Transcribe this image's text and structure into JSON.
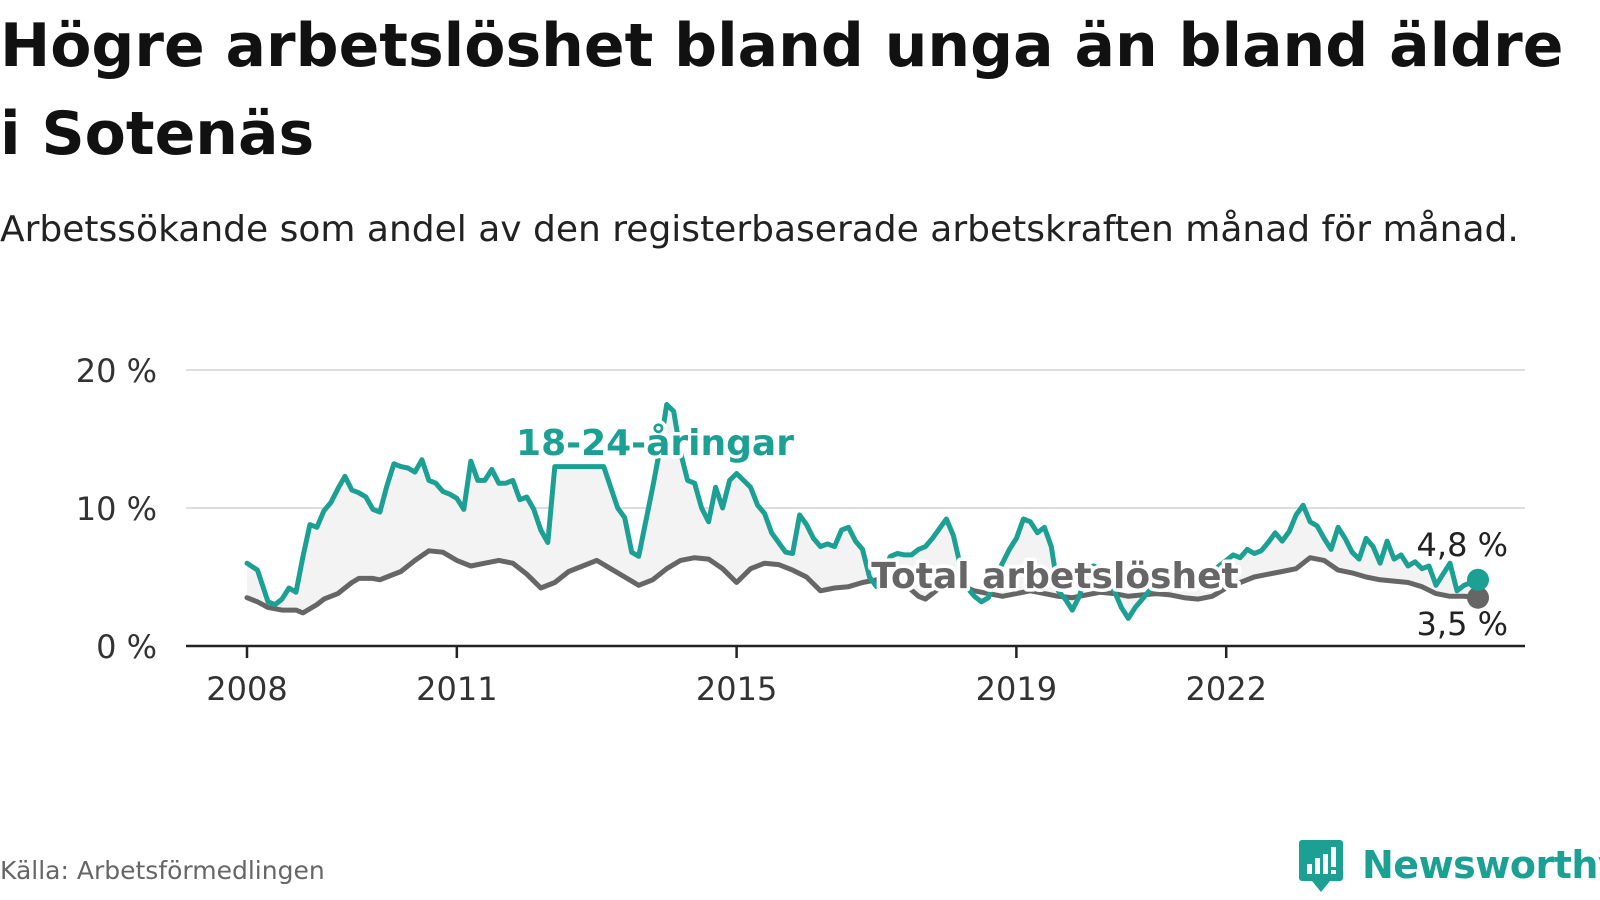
{
  "header": {
    "title": "Högre arbetslöshet bland unga än bland äldre i Sotenäs",
    "subtitle": "Arbetssökande som andel av den registerbaserade arbetskraften månad för månad."
  },
  "footer": {
    "source": "Källa: Arbetsförmedlingen",
    "brand": "Newsworthy"
  },
  "colors": {
    "young": "#1ba093",
    "total": "#666666",
    "band": "#f3f3f3",
    "grid": "#dddddd",
    "axis": "#222222"
  },
  "chart_data": {
    "type": "line",
    "x_start": "2008-01",
    "x_end": "2023-01",
    "ylim": [
      0,
      20
    ],
    "y_ticks": [
      {
        "value": 0,
        "label": "0 %"
      },
      {
        "value": 10,
        "label": "10 %"
      },
      {
        "value": 20,
        "label": "20 %"
      }
    ],
    "x_ticks": [
      {
        "value": 2008,
        "label": "2008"
      },
      {
        "value": 2011,
        "label": "2011"
      },
      {
        "value": 2015,
        "label": "2015"
      },
      {
        "value": 2019,
        "label": "2019"
      },
      {
        "value": 2022,
        "label": "2022"
      }
    ],
    "grid": true,
    "series": [
      {
        "name": "18-24-åringar",
        "color": "#1ba093",
        "end_label": "4,8 %",
        "points": [
          [
            2008.0,
            6.0
          ],
          [
            2008.15,
            5.5
          ],
          [
            2008.3,
            3.2
          ],
          [
            2008.4,
            3.0
          ],
          [
            2008.5,
            3.4
          ],
          [
            2008.6,
            4.2
          ],
          [
            2008.7,
            3.9
          ],
          [
            2008.8,
            6.5
          ],
          [
            2008.9,
            8.8
          ],
          [
            2009.0,
            8.6
          ],
          [
            2009.1,
            9.8
          ],
          [
            2009.2,
            10.4
          ],
          [
            2009.3,
            11.4
          ],
          [
            2009.4,
            12.3
          ],
          [
            2009.5,
            11.3
          ],
          [
            2009.6,
            11.1
          ],
          [
            2009.7,
            10.8
          ],
          [
            2009.8,
            9.9
          ],
          [
            2009.9,
            9.7
          ],
          [
            2010.0,
            11.6
          ],
          [
            2010.1,
            13.2
          ],
          [
            2010.2,
            13.0
          ],
          [
            2010.3,
            12.9
          ],
          [
            2010.4,
            12.6
          ],
          [
            2010.5,
            13.5
          ],
          [
            2010.6,
            12.0
          ],
          [
            2010.7,
            11.8
          ],
          [
            2010.8,
            11.2
          ],
          [
            2010.9,
            11.0
          ],
          [
            2011.0,
            10.7
          ],
          [
            2011.1,
            9.9
          ],
          [
            2011.2,
            13.4
          ],
          [
            2011.3,
            12.0
          ],
          [
            2011.4,
            12.0
          ],
          [
            2011.5,
            12.8
          ],
          [
            2011.6,
            11.8
          ],
          [
            2011.7,
            11.8
          ],
          [
            2011.8,
            12.0
          ],
          [
            2011.9,
            10.6
          ],
          [
            2012.0,
            10.8
          ],
          [
            2012.1,
            9.9
          ],
          [
            2012.2,
            8.4
          ],
          [
            2012.3,
            7.5
          ],
          [
            2012.4,
            13.0
          ],
          [
            2013.1,
            13.0
          ],
          [
            2013.2,
            11.5
          ],
          [
            2013.3,
            10.0
          ],
          [
            2013.4,
            9.3
          ],
          [
            2013.5,
            6.8
          ],
          [
            2013.6,
            6.5
          ],
          [
            2013.7,
            9.0
          ],
          [
            2013.8,
            11.5
          ],
          [
            2013.9,
            14.2
          ],
          [
            2014.0,
            17.5
          ],
          [
            2014.1,
            17.0
          ],
          [
            2014.2,
            14.0
          ],
          [
            2014.3,
            12.0
          ],
          [
            2014.4,
            11.8
          ],
          [
            2014.5,
            10.0
          ],
          [
            2014.6,
            9.0
          ],
          [
            2014.7,
            11.5
          ],
          [
            2014.8,
            10.0
          ],
          [
            2014.9,
            12.0
          ],
          [
            2015.0,
            12.5
          ],
          [
            2015.1,
            12.0
          ],
          [
            2015.2,
            11.5
          ],
          [
            2015.3,
            10.2
          ],
          [
            2015.4,
            9.6
          ],
          [
            2015.5,
            8.2
          ],
          [
            2015.6,
            7.5
          ],
          [
            2015.7,
            6.8
          ],
          [
            2015.8,
            6.7
          ],
          [
            2015.9,
            9.5
          ],
          [
            2016.0,
            8.8
          ],
          [
            2016.1,
            7.8
          ],
          [
            2016.2,
            7.2
          ],
          [
            2016.3,
            7.4
          ],
          [
            2016.4,
            7.2
          ],
          [
            2016.5,
            8.4
          ],
          [
            2016.6,
            8.6
          ],
          [
            2016.7,
            7.6
          ],
          [
            2016.8,
            7.0
          ],
          [
            2016.9,
            5.0
          ],
          [
            2017.0,
            4.3
          ],
          [
            2017.1,
            5.5
          ],
          [
            2017.2,
            6.5
          ],
          [
            2017.3,
            6.7
          ],
          [
            2017.4,
            6.6
          ],
          [
            2017.5,
            6.6
          ],
          [
            2017.6,
            7.0
          ],
          [
            2017.7,
            7.2
          ],
          [
            2017.8,
            7.8
          ],
          [
            2017.9,
            8.5
          ],
          [
            2018.0,
            9.2
          ],
          [
            2018.1,
            8.0
          ],
          [
            2018.2,
            5.8
          ],
          [
            2018.3,
            4.2
          ],
          [
            2018.4,
            3.6
          ],
          [
            2018.5,
            3.2
          ],
          [
            2018.6,
            3.5
          ],
          [
            2018.7,
            5.0
          ],
          [
            2018.8,
            6.0
          ],
          [
            2018.9,
            7.0
          ],
          [
            2019.0,
            7.8
          ],
          [
            2019.1,
            9.2
          ],
          [
            2019.2,
            9.0
          ],
          [
            2019.3,
            8.2
          ],
          [
            2019.4,
            8.6
          ],
          [
            2019.5,
            7.2
          ],
          [
            2019.6,
            4.0
          ],
          [
            2019.7,
            3.4
          ],
          [
            2019.8,
            2.6
          ],
          [
            2019.9,
            3.6
          ],
          [
            2020.0,
            5.2
          ],
          [
            2020.1,
            5.8
          ],
          [
            2020.2,
            5.6
          ],
          [
            2020.3,
            4.8
          ],
          [
            2020.4,
            4.0
          ],
          [
            2020.5,
            2.8
          ],
          [
            2020.6,
            2.0
          ],
          [
            2020.7,
            2.8
          ],
          [
            2020.8,
            3.4
          ],
          [
            2020.9,
            4.0
          ],
          [
            2021.0,
            4.2
          ],
          [
            2021.1,
            4.6
          ],
          [
            2021.2,
            4.8
          ],
          [
            2021.3,
            5.0
          ],
          [
            2021.4,
            4.8
          ],
          [
            2021.5,
            4.4
          ],
          [
            2021.6,
            4.8
          ],
          [
            2021.7,
            5.0
          ],
          [
            2021.8,
            5.4
          ],
          [
            2021.9,
            5.8
          ],
          [
            2022.0,
            6.2
          ],
          [
            2022.1,
            6.6
          ],
          [
            2022.2,
            6.4
          ],
          [
            2022.3,
            7.0
          ],
          [
            2022.4,
            6.7
          ],
          [
            2022.5,
            6.9
          ],
          [
            2022.6,
            7.5
          ],
          [
            2022.7,
            8.2
          ],
          [
            2022.8,
            7.6
          ],
          [
            2022.9,
            8.3
          ],
          [
            2023.0,
            9.5
          ],
          [
            2023.1,
            10.2
          ],
          [
            2023.2,
            9.0
          ],
          [
            2023.3,
            8.7
          ],
          [
            2023.4,
            7.8
          ],
          [
            2023.5,
            7.0
          ],
          [
            2023.6,
            8.6
          ],
          [
            2023.7,
            7.8
          ],
          [
            2023.8,
            6.8
          ],
          [
            2023.9,
            6.3
          ],
          [
            2024.0,
            7.8
          ],
          [
            2024.1,
            7.2
          ],
          [
            2024.2,
            6.0
          ],
          [
            2024.3,
            7.6
          ],
          [
            2024.4,
            6.3
          ],
          [
            2024.5,
            6.6
          ],
          [
            2024.6,
            5.8
          ],
          [
            2024.7,
            6.1
          ],
          [
            2024.8,
            5.6
          ],
          [
            2024.9,
            5.8
          ],
          [
            2025.0,
            4.4
          ],
          [
            2025.1,
            5.2
          ],
          [
            2025.2,
            6.0
          ],
          [
            2025.3,
            4.0
          ],
          [
            2025.4,
            4.4
          ],
          [
            2025.5,
            4.6
          ],
          [
            2025.6,
            4.8
          ]
        ]
      },
      {
        "name": "Total arbetslöshet",
        "color": "#666666",
        "end_label": "3,5 %",
        "points": [
          [
            2008.0,
            3.5
          ],
          [
            2008.15,
            3.2
          ],
          [
            2008.3,
            2.8
          ],
          [
            2008.5,
            2.6
          ],
          [
            2008.7,
            2.6
          ],
          [
            2008.8,
            2.4
          ],
          [
            2008.9,
            2.7
          ],
          [
            2009.0,
            3.0
          ],
          [
            2009.1,
            3.4
          ],
          [
            2009.2,
            3.6
          ],
          [
            2009.3,
            3.8
          ],
          [
            2009.4,
            4.2
          ],
          [
            2009.5,
            4.6
          ],
          [
            2009.6,
            4.9
          ],
          [
            2009.7,
            4.9
          ],
          [
            2009.8,
            4.9
          ],
          [
            2009.9,
            4.8
          ],
          [
            2010.0,
            5.0
          ],
          [
            2010.2,
            5.4
          ],
          [
            2010.4,
            6.2
          ],
          [
            2010.6,
            6.9
          ],
          [
            2010.8,
            6.8
          ],
          [
            2011.0,
            6.2
          ],
          [
            2011.2,
            5.8
          ],
          [
            2011.4,
            6.0
          ],
          [
            2011.6,
            6.2
          ],
          [
            2011.8,
            6.0
          ],
          [
            2012.0,
            5.2
          ],
          [
            2012.2,
            4.2
          ],
          [
            2012.4,
            4.6
          ],
          [
            2012.6,
            5.4
          ],
          [
            2012.8,
            5.8
          ],
          [
            2013.0,
            6.2
          ],
          [
            2013.2,
            5.6
          ],
          [
            2013.4,
            5.0
          ],
          [
            2013.6,
            4.4
          ],
          [
            2013.8,
            4.8
          ],
          [
            2014.0,
            5.6
          ],
          [
            2014.2,
            6.2
          ],
          [
            2014.4,
            6.4
          ],
          [
            2014.6,
            6.3
          ],
          [
            2014.8,
            5.6
          ],
          [
            2015.0,
            4.6
          ],
          [
            2015.2,
            5.6
          ],
          [
            2015.4,
            6.0
          ],
          [
            2015.6,
            5.9
          ],
          [
            2015.8,
            5.5
          ],
          [
            2016.0,
            5.0
          ],
          [
            2016.2,
            4.0
          ],
          [
            2016.4,
            4.2
          ],
          [
            2016.6,
            4.3
          ],
          [
            2016.8,
            4.6
          ],
          [
            2017.0,
            4.8
          ],
          [
            2017.2,
            5.0
          ],
          [
            2017.4,
            4.5
          ],
          [
            2017.6,
            3.6
          ],
          [
            2017.7,
            3.4
          ],
          [
            2017.8,
            3.8
          ],
          [
            2017.9,
            4.2
          ],
          [
            2018.0,
            4.6
          ],
          [
            2018.2,
            4.4
          ],
          [
            2018.4,
            4.0
          ],
          [
            2018.6,
            3.8
          ],
          [
            2018.8,
            3.6
          ],
          [
            2019.0,
            3.8
          ],
          [
            2019.2,
            4.0
          ],
          [
            2019.4,
            3.8
          ],
          [
            2019.6,
            3.6
          ],
          [
            2019.8,
            3.5
          ],
          [
            2020.0,
            3.7
          ],
          [
            2020.2,
            3.9
          ],
          [
            2020.4,
            3.8
          ],
          [
            2020.6,
            3.6
          ],
          [
            2020.8,
            3.7
          ],
          [
            2021.0,
            3.8
          ],
          [
            2021.2,
            3.7
          ],
          [
            2021.4,
            3.5
          ],
          [
            2021.6,
            3.4
          ],
          [
            2021.8,
            3.6
          ],
          [
            2022.0,
            4.2
          ],
          [
            2022.2,
            4.6
          ],
          [
            2022.4,
            5.0
          ],
          [
            2022.6,
            5.2
          ],
          [
            2022.8,
            5.4
          ],
          [
            2023.0,
            5.6
          ],
          [
            2023.2,
            6.4
          ],
          [
            2023.4,
            6.2
          ],
          [
            2023.6,
            5.5
          ],
          [
            2023.8,
            5.3
          ],
          [
            2024.0,
            5.0
          ],
          [
            2024.2,
            4.8
          ],
          [
            2024.4,
            4.7
          ],
          [
            2024.6,
            4.6
          ],
          [
            2024.8,
            4.3
          ],
          [
            2025.0,
            3.8
          ],
          [
            2025.2,
            3.6
          ],
          [
            2025.4,
            3.6
          ],
          [
            2025.6,
            3.5
          ]
        ]
      }
    ]
  }
}
